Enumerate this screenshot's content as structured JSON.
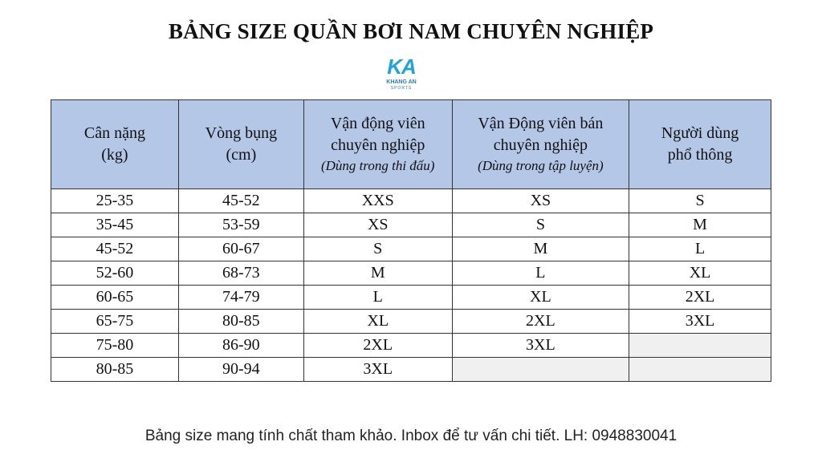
{
  "title": "BẢNG SIZE QUẦN BƠI NAM CHUYÊN NGHIỆP",
  "logo": {
    "mark": "KA",
    "name": "KHANG AN",
    "sub": "SPORTS",
    "color": "#1fa3dc"
  },
  "table": {
    "headers": [
      {
        "line1": "Cân nặng",
        "line2": "(kg)",
        "note": ""
      },
      {
        "line1": "Vòng bụng",
        "line2": "(cm)",
        "note": ""
      },
      {
        "line1": "Vận động viên",
        "line2": "chuyên nghiệp",
        "note": "(Dùng trong thi đấu)"
      },
      {
        "line1": "Vận Động viên bán",
        "line2": "chuyên nghiệp",
        "note": "(Dùng trong tập luyện)"
      },
      {
        "line1": "Người dùng",
        "line2": "phổ thông",
        "note": ""
      }
    ],
    "header_bg": "#b4c7e7",
    "rows": [
      [
        "25-35",
        "45-52",
        "XXS",
        "XS",
        "S"
      ],
      [
        "35-45",
        "53-59",
        "XS",
        "S",
        "M"
      ],
      [
        "45-52",
        "60-67",
        "S",
        "M",
        "L"
      ],
      [
        "52-60",
        "68-73",
        "M",
        "L",
        "XL"
      ],
      [
        "60-65",
        "74-79",
        "L",
        "XL",
        "2XL"
      ],
      [
        "65-75",
        "80-85",
        "XL",
        "2XL",
        "3XL"
      ],
      [
        "75-80",
        "86-90",
        "2XL",
        "3XL",
        ""
      ],
      [
        "80-85",
        "90-94",
        "3XL",
        "",
        ""
      ]
    ]
  },
  "footer": "Bảng size mang tính chất tham khảo. Inbox để tư vấn chi tiết. LH: 0948830041"
}
